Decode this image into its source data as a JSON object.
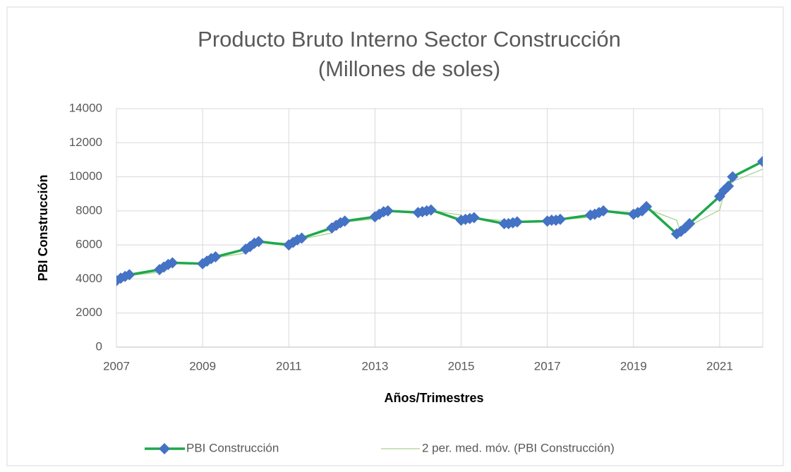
{
  "chart_data": {
    "type": "line",
    "title": "Producto Bruto Interno Sector Construcción",
    "subtitle": "(Millones de soles)",
    "x_label": "Años/Trimestres",
    "y_label": "PBI Construcción",
    "x": [
      2007.0,
      2007.1,
      2007.2,
      2007.3,
      2008.0,
      2008.1,
      2008.2,
      2008.3,
      2009.0,
      2009.1,
      2009.2,
      2009.3,
      2010.0,
      2010.1,
      2010.2,
      2010.3,
      2011.0,
      2011.1,
      2011.2,
      2011.3,
      2012.0,
      2012.1,
      2012.2,
      2012.3,
      2013.0,
      2013.1,
      2013.2,
      2013.3,
      2014.0,
      2014.1,
      2014.2,
      2014.3,
      2015.0,
      2015.1,
      2015.2,
      2015.3,
      2016.0,
      2016.1,
      2016.2,
      2016.3,
      2017.0,
      2017.1,
      2017.2,
      2017.3,
      2018.0,
      2018.1,
      2018.2,
      2018.3,
      2019.0,
      2019.1,
      2019.2,
      2019.3,
      2020.0,
      2020.1,
      2020.2,
      2020.3,
      2021.0,
      2021.1,
      2021.2,
      2021.3,
      2022.0
    ],
    "series": [
      {
        "name": "PBI Construcción",
        "color": "#1ea84b",
        "marker_color": "#4472c4",
        "values": [
          3900,
          4050,
          4150,
          4250,
          4550,
          4700,
          4850,
          4950,
          4900,
          5050,
          5200,
          5300,
          5750,
          5900,
          6100,
          6200,
          6000,
          6150,
          6300,
          6400,
          7000,
          7150,
          7300,
          7400,
          7650,
          7800,
          7950,
          8000,
          7900,
          7950,
          8000,
          8050,
          7450,
          7500,
          7550,
          7600,
          7250,
          7250,
          7300,
          7350,
          7400,
          7450,
          7450,
          7500,
          7750,
          7800,
          7900,
          8000,
          7800,
          7900,
          8000,
          8250,
          6650,
          6800,
          7000,
          7250,
          8850,
          9200,
          9450,
          10000,
          10900
        ]
      },
      {
        "name": "2 per. med. móv. (PBI Construcción)",
        "color": "#a9d18e",
        "values": [
          null,
          3975,
          4100,
          4200,
          4400,
          4625,
          4775,
          4900,
          4925,
          4975,
          5125,
          5250,
          5525,
          5825,
          6000,
          6150,
          6100,
          6075,
          6225,
          6350,
          6700,
          7075,
          7225,
          7350,
          7525,
          7725,
          7875,
          7975,
          7950,
          7925,
          7975,
          8025,
          7750,
          7475,
          7525,
          7575,
          7425,
          7250,
          7275,
          7325,
          7375,
          7425,
          7450,
          7475,
          7625,
          7775,
          7850,
          7950,
          7900,
          7850,
          7950,
          8125,
          7450,
          6725,
          6900,
          7125,
          8050,
          9025,
          9325,
          9725,
          10450
        ]
      }
    ],
    "xlim": [
      2007,
      2022
    ],
    "xticks": [
      2007,
      2009,
      2011,
      2013,
      2015,
      2017,
      2019,
      2021
    ],
    "ylim": [
      0,
      14000
    ],
    "yticks": [
      0,
      2000,
      4000,
      6000,
      8000,
      10000,
      12000,
      14000
    ],
    "grid": true,
    "legend": "bottom"
  }
}
